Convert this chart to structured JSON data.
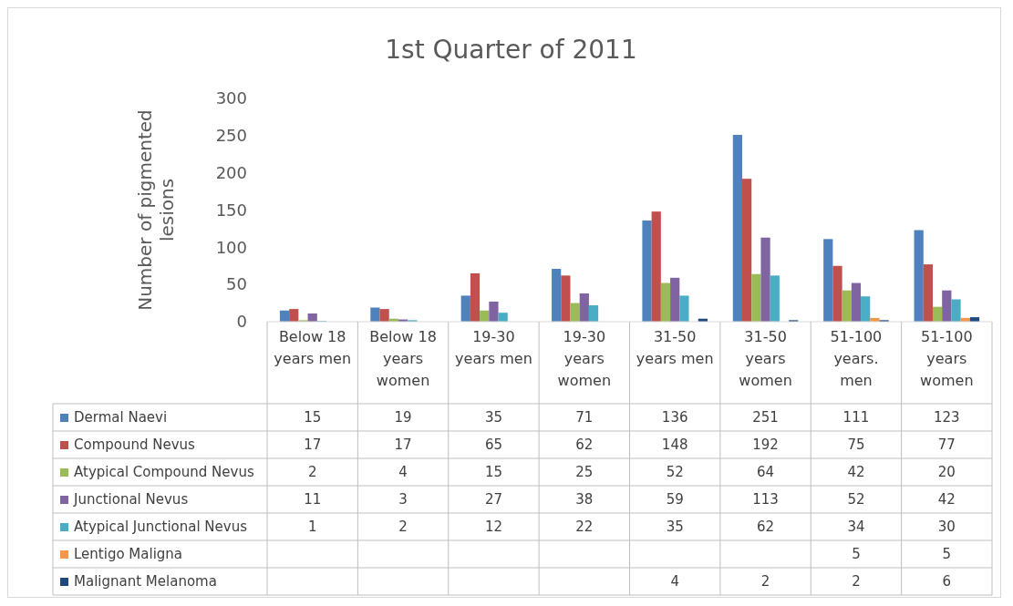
{
  "chart_data": {
    "type": "bar",
    "title": "1st Quarter of 2011",
    "ylabel": "Number of pigmented lesions",
    "categories": [
      "Below 18 years men",
      "Below 18 years women",
      "19-30 years men",
      "19-30 years women",
      "31-50 years men",
      "31-50 years women",
      "51-100 years. men",
      "51-100 years women"
    ],
    "series": [
      {
        "name": "Dermal Naevi",
        "color": "#4f81bd",
        "values": [
          15,
          19,
          35,
          71,
          136,
          251,
          111,
          123
        ]
      },
      {
        "name": "Compound Nevus",
        "color": "#c0504d",
        "values": [
          17,
          17,
          65,
          62,
          148,
          192,
          75,
          77
        ]
      },
      {
        "name": "Atypical Compound Nevus",
        "color": "#9bbb59",
        "values": [
          2,
          4,
          15,
          25,
          52,
          64,
          42,
          20
        ]
      },
      {
        "name": "Junctional Nevus",
        "color": "#8064a2",
        "values": [
          11,
          3,
          27,
          38,
          59,
          113,
          52,
          42
        ]
      },
      {
        "name": "Atypical Junctional Nevus",
        "color": "#4bacc6",
        "values": [
          1,
          2,
          12,
          22,
          35,
          62,
          34,
          30
        ]
      },
      {
        "name": "Lentigo Maligna",
        "color": "#f79646",
        "values": [
          null,
          null,
          null,
          null,
          null,
          null,
          5,
          5
        ]
      },
      {
        "name": "Malignant Melanoma",
        "color": "#1f497d",
        "values": [
          null,
          null,
          null,
          null,
          4,
          2,
          2,
          6
        ]
      }
    ],
    "ylim": [
      0,
      300
    ],
    "yticks": [
      0,
      50,
      100,
      150,
      200,
      250,
      300
    ],
    "grid": false,
    "legend": "bottom",
    "data_labels": true
  }
}
